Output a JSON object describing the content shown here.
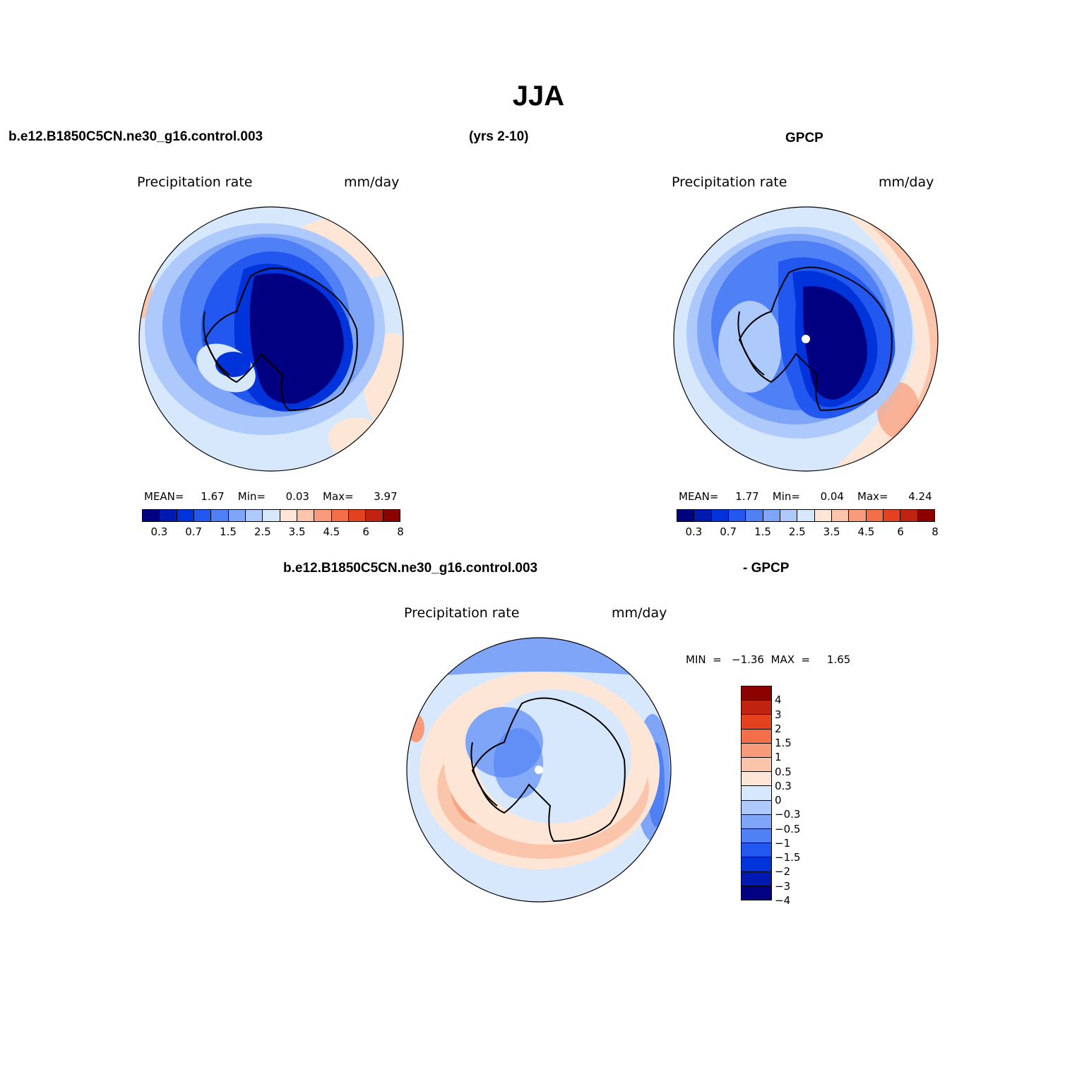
{
  "figure": {
    "title": "JJA",
    "case_name": "b.e12.B1850C5CN.ne30_g16.control.003",
    "years": "(yrs 2-10)",
    "obs_name": "GPCP",
    "diff_case_name": "b.e12.B1850C5CN.ne30_g16.control.003",
    "diff_obs_name": "- GPCP"
  },
  "colors": {
    "abs_scale": [
      "#000080",
      "#0019b0",
      "#0033d9",
      "#2258f0",
      "#4f80f5",
      "#7fa5f8",
      "#aec9fb",
      "#d7e8fd",
      "#fde6d5",
      "#fbc5ac",
      "#f79b7a",
      "#f26f49",
      "#e4421e",
      "#c02310",
      "#8c0000"
    ],
    "diff_scale": [
      "#000080",
      "#0019b0",
      "#0033d9",
      "#2258f0",
      "#4f80f5",
      "#7fa5f8",
      "#aec9fb",
      "#d7e8fd",
      "#fde6d5",
      "#fbc5ac",
      "#f79b7a",
      "#f26f49",
      "#e4421e",
      "#c02310",
      "#8c0000"
    ]
  },
  "panels": {
    "model": {
      "left_label": "Precipitation  rate",
      "right_label": "mm/day",
      "stats": "MEAN=     1.67    Min=      0.03    Max=      3.97",
      "colorbar_ticks": [
        "0.3",
        "0.7",
        "1.5",
        "2.5",
        "3.5",
        "4.5",
        "6",
        "8"
      ]
    },
    "obs": {
      "left_label": "Precipitation  rate",
      "right_label": "mm/day",
      "stats": "MEAN=     1.77    Min=      0.04    Max=      4.24",
      "colorbar_ticks": [
        "0.3",
        "0.7",
        "1.5",
        "2.5",
        "3.5",
        "4.5",
        "6",
        "8"
      ]
    },
    "diff": {
      "left_label": "Precipitation  rate",
      "right_label": "mm/day",
      "stats": "MIN  =   −1.36  MAX  =     1.65",
      "colorbar_ticks": [
        "4",
        "3",
        "2",
        "1.5",
        "1",
        "0.5",
        "0.3",
        "0",
        "−0.3",
        "−0.5",
        "−1",
        "−1.5",
        "−2",
        "−3",
        "−4"
      ]
    }
  }
}
